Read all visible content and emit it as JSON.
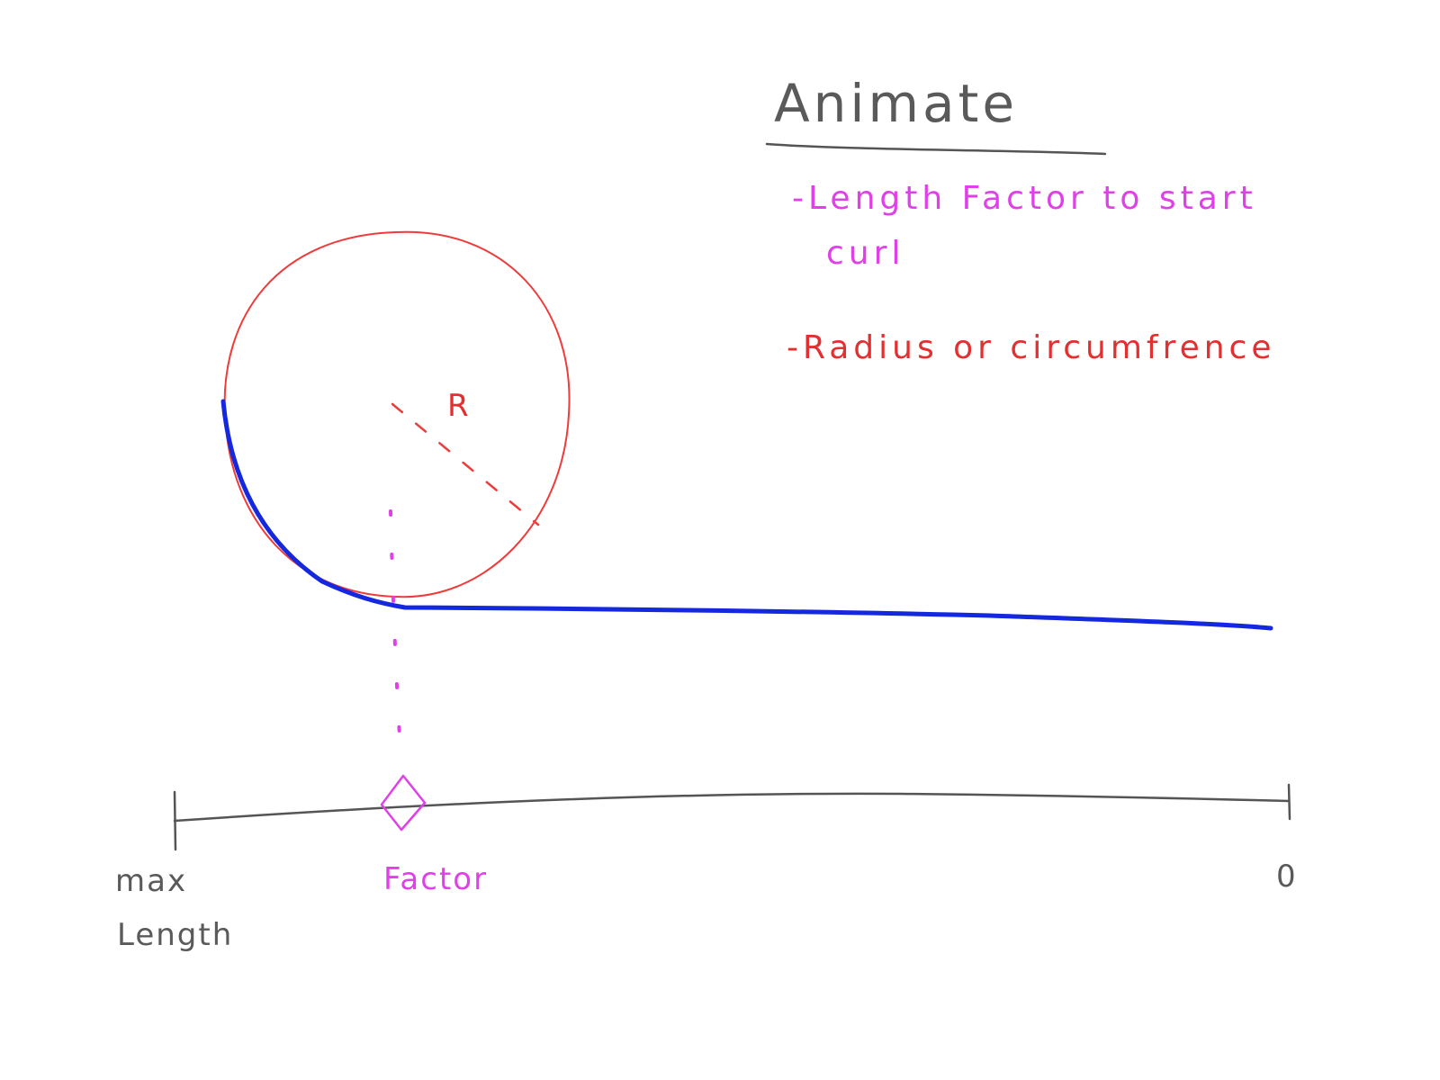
{
  "title": "Animate",
  "notes": [
    {
      "lines": [
        "-Length Factor to start",
        "curl"
      ]
    },
    {
      "lines": [
        "-Radius or circumfrence"
      ]
    }
  ],
  "radius_label": "R",
  "axis": {
    "left_label_lines": [
      "max",
      "Length"
    ],
    "factor_label": "Factor",
    "right_label": "0"
  },
  "colors": {
    "ink": "#5a5a5a",
    "circle": "#ee3b3b",
    "curl": "#1428e0",
    "factor": "#e040e8",
    "radius_note": "#e23030"
  }
}
